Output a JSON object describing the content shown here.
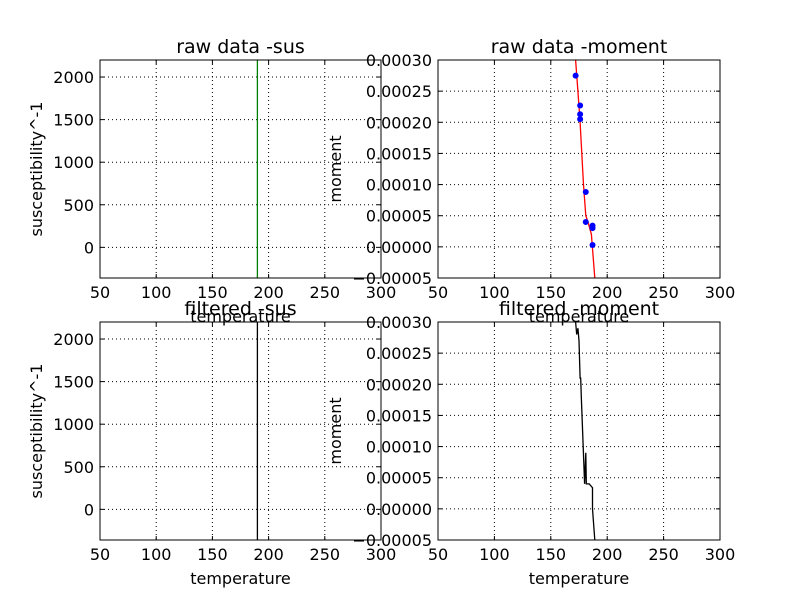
{
  "chart_data": [
    {
      "type": "line",
      "title": "raw data -sus",
      "xlabel": "temperature",
      "ylabel": "susceptibility^-1",
      "xlim": [
        50,
        300
      ],
      "ylim": [
        -360,
        2200
      ],
      "xticks": [
        50,
        100,
        150,
        200,
        250,
        300
      ],
      "yticks": [
        0,
        500,
        1000,
        1500,
        2000
      ],
      "ytick_labels": [
        "0",
        "500",
        "1000",
        "1500",
        "2000"
      ],
      "grid": true,
      "series": [
        {
          "color": "#008000",
          "marker": "none",
          "points": [
            [
              190,
              -360
            ],
            [
              190,
              2200
            ]
          ]
        }
      ]
    },
    {
      "type": "line",
      "title": "raw data -moment",
      "xlabel": "temperature",
      "ylabel": "moment",
      "xlim": [
        50,
        300
      ],
      "ylim": [
        -5e-05,
        0.0003
      ],
      "xticks": [
        50,
        100,
        150,
        200,
        250,
        300
      ],
      "yticks": [
        -5e-05,
        0.0,
        5e-05,
        0.0001,
        0.00015,
        0.0002,
        0.00025,
        0.0003
      ],
      "ytick_labels": [
        "−0.00005",
        "0.00000",
        "0.00005",
        "0.00010",
        "0.00015",
        "0.00020",
        "0.00025",
        "0.00030"
      ],
      "grid": true,
      "series": [
        {
          "color": "#ff0000",
          "marker": "none",
          "points": [
            [
              172,
              0.0003
            ],
            [
              174,
              0.00025
            ],
            [
              176,
              0.0002
            ],
            [
              177.5,
              0.00015
            ],
            [
              179,
              0.0001
            ],
            [
              181,
              5e-05
            ],
            [
              183,
              4e-05
            ],
            [
              186,
              2e-05
            ],
            [
              189,
              -5e-05
            ]
          ]
        },
        {
          "color": "#0000ff",
          "marker": "o",
          "points": [
            [
              172,
              0.000275
            ],
            [
              176,
              0.000227
            ],
            [
              176,
              0.000213
            ],
            [
              176,
              0.000205
            ],
            [
              181,
              8.8e-05
            ],
            [
              181,
              4e-05
            ],
            [
              187,
              3.4e-05
            ],
            [
              187,
              3e-05
            ],
            [
              187,
              3e-06
            ]
          ]
        }
      ]
    },
    {
      "type": "line",
      "title": "filtered -sus",
      "xlabel": "temperature",
      "ylabel": "susceptibility^-1",
      "xlim": [
        50,
        300
      ],
      "ylim": [
        -360,
        2200
      ],
      "xticks": [
        50,
        100,
        150,
        200,
        250,
        300
      ],
      "yticks": [
        0,
        500,
        1000,
        1500,
        2000
      ],
      "ytick_labels": [
        "0",
        "500",
        "1000",
        "1500",
        "2000"
      ],
      "grid": true,
      "series": [
        {
          "color": "#000000",
          "marker": "none",
          "points": [
            [
              190,
              -360
            ],
            [
              190,
              2200
            ]
          ]
        }
      ]
    },
    {
      "type": "line",
      "title": "filtered -moment",
      "xlabel": "temperature",
      "ylabel": "moment",
      "xlim": [
        50,
        300
      ],
      "ylim": [
        -5e-05,
        0.0003
      ],
      "xticks": [
        50,
        100,
        150,
        200,
        250,
        300
      ],
      "yticks": [
        -5e-05,
        0.0,
        5e-05,
        0.0001,
        0.00015,
        0.0002,
        0.00025,
        0.0003
      ],
      "ytick_labels": [
        "−0.00005",
        "0.00000",
        "0.00005",
        "0.00010",
        "0.00015",
        "0.00020",
        "0.00025",
        "0.00030"
      ],
      "grid": true,
      "series": [
        {
          "color": "#000000",
          "marker": "none",
          "points": [
            [
              172,
              0.0003
            ],
            [
              173,
              0.00028
            ],
            [
              174,
              0.00029
            ],
            [
              175,
              0.00027
            ],
            [
              176,
              0.00021
            ],
            [
              176.5,
              0.00021
            ],
            [
              177,
              0.00018
            ],
            [
              180,
              4e-05
            ],
            [
              181,
              9e-05
            ],
            [
              181.5,
              4e-05
            ],
            [
              184,
              4e-05
            ],
            [
              187,
              3.4e-05
            ],
            [
              187,
              0.0
            ],
            [
              189,
              -5e-05
            ]
          ]
        }
      ]
    }
  ]
}
